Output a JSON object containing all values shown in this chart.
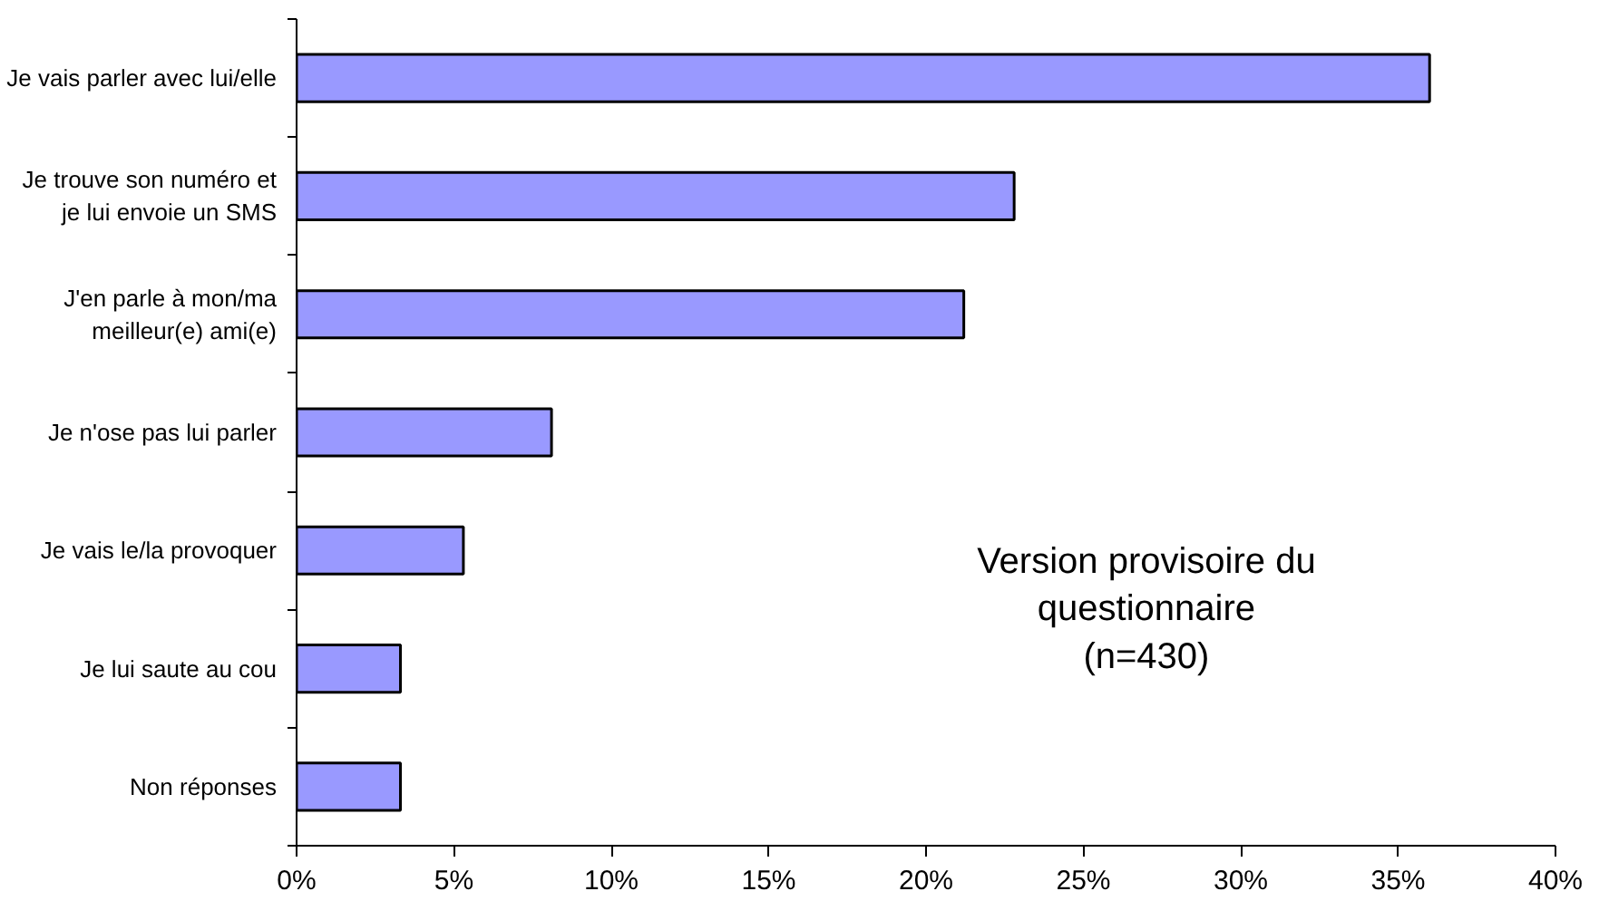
{
  "chart_data": {
    "type": "bar",
    "orientation": "horizontal",
    "categories": [
      "Je vais parler avec lui/elle",
      "Je trouve son numéro et\nje lui envoie un SMS",
      "J'en parle à mon/ma\nmeilleur(e) ami(e)",
      "Je n'ose pas lui parler",
      "Je vais le/la provoquer",
      "Je lui saute au cou",
      "Non réponses"
    ],
    "values": [
      36.0,
      22.8,
      21.2,
      8.1,
      5.3,
      3.3,
      3.3
    ],
    "color": "#9999ff",
    "xlim": [
      0,
      40
    ],
    "xticks": [
      {
        "value": 0,
        "label": "0%"
      },
      {
        "value": 5,
        "label": "5%"
      },
      {
        "value": 10,
        "label": "10%"
      },
      {
        "value": 15,
        "label": "15%"
      },
      {
        "value": 20,
        "label": "20%"
      },
      {
        "value": 25,
        "label": "25%"
      },
      {
        "value": 30,
        "label": "30%"
      },
      {
        "value": 35,
        "label": "35%"
      },
      {
        "value": 40,
        "label": "40%"
      }
    ],
    "annotations": [
      "Version provisoire du\nquestionnaire\n(n=430)"
    ],
    "grid": false
  }
}
